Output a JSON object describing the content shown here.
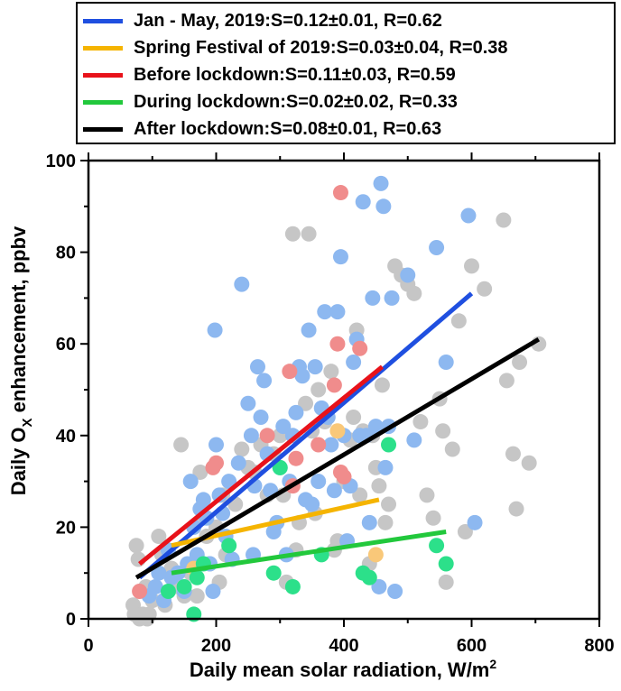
{
  "chart_data": {
    "type": "scatter",
    "xlabel": "Daily mean solar radiation, W/m",
    "xlabel_sup": "2",
    "ylabel": "Daily O",
    "ylabel_sub": "X",
    "ylabel_rest": " enhancement, ppbv",
    "xlim": [
      0,
      800
    ],
    "ylim": [
      0,
      100
    ],
    "x_ticks": [
      "0",
      "200",
      "400",
      "600",
      "800"
    ],
    "y_ticks": [
      "0",
      "20",
      "40",
      "60",
      "80",
      "100"
    ],
    "grid": false,
    "legend_position": "top",
    "legend": [
      {
        "label": "Jan - May, 2019:S=0.12±0.01, R=0.62",
        "color": "#1f4fe0"
      },
      {
        "label": "Spring Festival of 2019:S=0.03±0.04, R=0.38",
        "color": "#f5b400"
      },
      {
        "label": "Before lockdown:S=0.11±0.03, R=0.59",
        "color": "#e8121a"
      },
      {
        "label": "During lockdown:S=0.02±0.02, R=0.33",
        "color": "#22c83c"
      },
      {
        "label": "After lockdown:S=0.08±0.01, R=0.63",
        "color": "#000000"
      }
    ],
    "series": [
      {
        "name": "Jan - May, 2019",
        "color": "#1f4fe0",
        "point_color": "#8db8f0",
        "fit": [
          [
            80,
            9
          ],
          [
            600,
            71
          ]
        ],
        "points": [
          [
            95,
            5
          ],
          [
            105,
            7
          ],
          [
            110,
            10
          ],
          [
            118,
            4
          ],
          [
            125,
            15
          ],
          [
            130,
            9
          ],
          [
            140,
            10
          ],
          [
            150,
            6
          ],
          [
            155,
            12
          ],
          [
            160,
            30
          ],
          [
            165,
            20
          ],
          [
            170,
            14
          ],
          [
            175,
            24
          ],
          [
            180,
            26
          ],
          [
            185,
            22
          ],
          [
            190,
            12
          ],
          [
            195,
            6
          ],
          [
            198,
            63
          ],
          [
            200,
            38
          ],
          [
            205,
            27
          ],
          [
            210,
            23
          ],
          [
            215,
            18
          ],
          [
            220,
            30
          ],
          [
            225,
            13
          ],
          [
            235,
            34
          ],
          [
            240,
            73
          ],
          [
            250,
            47
          ],
          [
            255,
            40
          ],
          [
            258,
            14
          ],
          [
            260,
            29
          ],
          [
            265,
            55
          ],
          [
            270,
            44
          ],
          [
            275,
            52
          ],
          [
            280,
            36
          ],
          [
            285,
            28
          ],
          [
            290,
            19
          ],
          [
            295,
            21
          ],
          [
            300,
            33
          ],
          [
            305,
            42
          ],
          [
            310,
            14
          ],
          [
            315,
            30
          ],
          [
            320,
            40
          ],
          [
            325,
            45
          ],
          [
            330,
            55
          ],
          [
            335,
            53
          ],
          [
            340,
            26
          ],
          [
            345,
            63
          ],
          [
            350,
            25
          ],
          [
            355,
            55
          ],
          [
            360,
            30
          ],
          [
            365,
            46
          ],
          [
            370,
            67
          ],
          [
            375,
            44
          ],
          [
            380,
            38
          ],
          [
            385,
            28
          ],
          [
            390,
            67
          ],
          [
            395,
            79
          ],
          [
            400,
            40
          ],
          [
            405,
            17
          ],
          [
            410,
            29
          ],
          [
            415,
            56
          ],
          [
            420,
            61
          ],
          [
            425,
            40
          ],
          [
            430,
            91
          ],
          [
            435,
            40
          ],
          [
            440,
            21
          ],
          [
            445,
            70
          ],
          [
            450,
            42
          ],
          [
            455,
            7
          ],
          [
            458,
            95
          ],
          [
            462,
            90
          ],
          [
            465,
            33
          ],
          [
            470,
            42
          ],
          [
            475,
            70
          ],
          [
            480,
            6
          ],
          [
            500,
            75
          ],
          [
            510,
            39
          ],
          [
            545,
            81
          ],
          [
            560,
            56
          ],
          [
            595,
            88
          ],
          [
            605,
            21
          ]
        ]
      },
      {
        "name": "Spring Festival of 2019",
        "color": "#f5b400",
        "point_color": "#f9c879",
        "fit": [
          [
            130,
            16
          ],
          [
            455,
            26
          ]
        ],
        "points": [
          [
            165,
            11
          ],
          [
            390,
            41
          ],
          [
            450,
            14
          ]
        ]
      },
      {
        "name": "Before lockdown",
        "color": "#e8121a",
        "point_color": "#f08c8c",
        "fit": [
          [
            80,
            12
          ],
          [
            460,
            55
          ]
        ],
        "points": [
          [
            80,
            6
          ],
          [
            195,
            33
          ],
          [
            200,
            34
          ],
          [
            280,
            40
          ],
          [
            315,
            54
          ],
          [
            320,
            29
          ],
          [
            325,
            35
          ],
          [
            360,
            38
          ],
          [
            385,
            51
          ],
          [
            390,
            60
          ],
          [
            395,
            93
          ],
          [
            395,
            32
          ],
          [
            400,
            31
          ],
          [
            425,
            59
          ]
        ]
      },
      {
        "name": "During lockdown",
        "color": "#22c83c",
        "point_color": "#2ce08a",
        "fit": [
          [
            130,
            10
          ],
          [
            560,
            19
          ]
        ],
        "points": [
          [
            125,
            6
          ],
          [
            150,
            7
          ],
          [
            165,
            1
          ],
          [
            170,
            9
          ],
          [
            180,
            12
          ],
          [
            220,
            16
          ],
          [
            290,
            10
          ],
          [
            300,
            33
          ],
          [
            320,
            7
          ],
          [
            365,
            14
          ],
          [
            430,
            10
          ],
          [
            440,
            9
          ],
          [
            470,
            38
          ],
          [
            545,
            16
          ],
          [
            560,
            12
          ]
        ]
      },
      {
        "name": "After lockdown",
        "color": "#000000",
        "point_color": "#c6c6c6",
        "fit": [
          [
            75,
            9
          ],
          [
            705,
            61
          ]
        ],
        "points": [
          [
            70,
            3
          ],
          [
            72,
            1
          ],
          [
            75,
            16
          ],
          [
            78,
            13
          ],
          [
            80,
            0
          ],
          [
            85,
            1
          ],
          [
            90,
            7
          ],
          [
            92,
            0
          ],
          [
            95,
            1
          ],
          [
            100,
            4
          ],
          [
            110,
            18
          ],
          [
            115,
            14
          ],
          [
            120,
            3
          ],
          [
            130,
            11
          ],
          [
            140,
            7
          ],
          [
            145,
            38
          ],
          [
            150,
            5
          ],
          [
            160,
            10
          ],
          [
            165,
            20
          ],
          [
            170,
            5
          ],
          [
            175,
            32
          ],
          [
            180,
            22
          ],
          [
            185,
            18
          ],
          [
            190,
            12
          ],
          [
            200,
            20
          ],
          [
            205,
            8
          ],
          [
            210,
            27
          ],
          [
            215,
            14
          ],
          [
            230,
            25
          ],
          [
            240,
            37
          ],
          [
            250,
            33
          ],
          [
            260,
            32
          ],
          [
            270,
            38
          ],
          [
            280,
            27
          ],
          [
            290,
            36
          ],
          [
            300,
            40
          ],
          [
            305,
            27
          ],
          [
            310,
            8
          ],
          [
            320,
            84
          ],
          [
            325,
            15
          ],
          [
            330,
            21
          ],
          [
            340,
            47
          ],
          [
            345,
            84
          ],
          [
            350,
            41
          ],
          [
            355,
            23
          ],
          [
            360,
            50
          ],
          [
            370,
            43
          ],
          [
            380,
            54
          ],
          [
            385,
            15
          ],
          [
            390,
            17
          ],
          [
            400,
            30
          ],
          [
            410,
            39
          ],
          [
            415,
            44
          ],
          [
            420,
            63
          ],
          [
            425,
            27
          ],
          [
            430,
            41
          ],
          [
            440,
            12
          ],
          [
            445,
            40
          ],
          [
            450,
            33
          ],
          [
            455,
            29
          ],
          [
            460,
            51
          ],
          [
            465,
            21
          ],
          [
            470,
            25
          ],
          [
            480,
            77
          ],
          [
            490,
            75
          ],
          [
            500,
            73
          ],
          [
            510,
            71
          ],
          [
            520,
            43
          ],
          [
            530,
            27
          ],
          [
            540,
            22
          ],
          [
            550,
            48
          ],
          [
            555,
            41
          ],
          [
            560,
            8
          ],
          [
            570,
            37
          ],
          [
            580,
            65
          ],
          [
            590,
            19
          ],
          [
            600,
            77
          ],
          [
            620,
            72
          ],
          [
            650,
            87
          ],
          [
            655,
            52
          ],
          [
            665,
            36
          ],
          [
            670,
            24
          ],
          [
            675,
            56
          ],
          [
            690,
            34
          ],
          [
            705,
            60
          ]
        ]
      }
    ]
  }
}
